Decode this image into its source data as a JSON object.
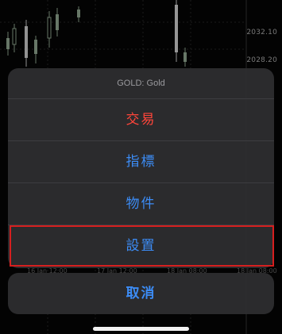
{
  "chart": {
    "price_labels": [
      "2032.10",
      "2028.20"
    ],
    "time_labels": [
      "16 Jan 12:00",
      "17 Jan 12:00",
      "18 Jan 08:00",
      "18 Jan 08:00"
    ]
  },
  "sheet": {
    "title": "GOLD: Gold",
    "items": [
      {
        "label": "交易",
        "color": "#ff453a"
      },
      {
        "label": "指標",
        "color": "#3c8cf5"
      },
      {
        "label": "物件",
        "color": "#3c8cf5"
      },
      {
        "label": "設置",
        "color": "#3c8cf5"
      }
    ],
    "cancel_label": "取消",
    "highlight_color": "#d61f1f"
  }
}
